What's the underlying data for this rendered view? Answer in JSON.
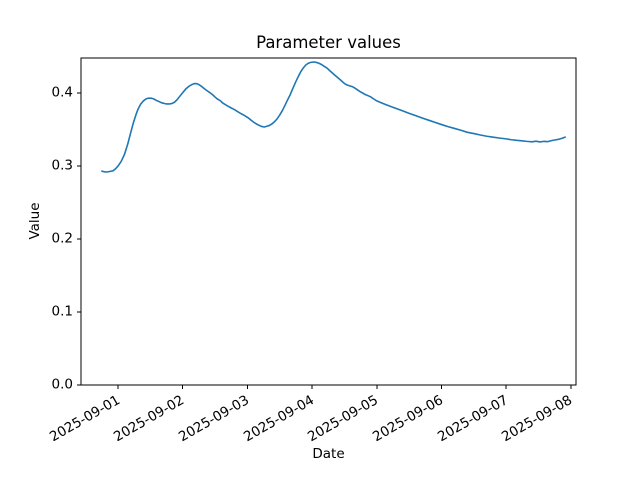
{
  "chart_data": {
    "type": "line",
    "title": "Parameter values",
    "xlabel": "Date",
    "ylabel": "Value",
    "grid": false,
    "legend": "none",
    "x_unit": "days relative to 2025-09-01 00:00",
    "xlim": [
      -0.572,
      7.078
    ],
    "ylim": [
      0.0,
      0.448
    ],
    "x_ticks": [
      {
        "label": "2025-09-01",
        "day": 0
      },
      {
        "label": "2025-09-02",
        "day": 1
      },
      {
        "label": "2025-09-03",
        "day": 2
      },
      {
        "label": "2025-09-04",
        "day": 3
      },
      {
        "label": "2025-09-05",
        "day": 4
      },
      {
        "label": "2025-09-06",
        "day": 5
      },
      {
        "label": "2025-09-07",
        "day": 6
      },
      {
        "label": "2025-09-08",
        "day": 7
      }
    ],
    "y_ticks": [
      {
        "label": "0.0",
        "value": 0.0
      },
      {
        "label": "0.1",
        "value": 0.1
      },
      {
        "label": "0.2",
        "value": 0.2
      },
      {
        "label": "0.3",
        "value": 0.3
      },
      {
        "label": "0.4",
        "value": 0.4
      }
    ],
    "series": [
      {
        "name": "parameter-values",
        "color": "#1f77b4",
        "line_width": 1.6,
        "points": [
          [
            -0.25,
            0.293
          ],
          [
            -0.21,
            0.2921
          ],
          [
            -0.17,
            0.2918
          ],
          [
            -0.12,
            0.2927
          ],
          [
            -0.08,
            0.2934
          ],
          [
            -0.04,
            0.296
          ],
          [
            0.0,
            0.3
          ],
          [
            0.05,
            0.3065
          ],
          [
            0.1,
            0.316
          ],
          [
            0.15,
            0.33
          ],
          [
            0.2,
            0.347
          ],
          [
            0.24,
            0.36
          ],
          [
            0.28,
            0.371
          ],
          [
            0.31,
            0.378
          ],
          [
            0.35,
            0.3848
          ],
          [
            0.39,
            0.389
          ],
          [
            0.43,
            0.3918
          ],
          [
            0.47,
            0.393
          ],
          [
            0.51,
            0.393
          ],
          [
            0.55,
            0.392
          ],
          [
            0.59,
            0.39
          ],
          [
            0.63,
            0.3885
          ],
          [
            0.67,
            0.3868
          ],
          [
            0.71,
            0.3858
          ],
          [
            0.75,
            0.385
          ],
          [
            0.79,
            0.385
          ],
          [
            0.83,
            0.3856
          ],
          [
            0.87,
            0.3872
          ],
          [
            0.91,
            0.3905
          ],
          [
            0.95,
            0.395
          ],
          [
            1.0,
            0.4005
          ],
          [
            1.05,
            0.4058
          ],
          [
            1.1,
            0.4095
          ],
          [
            1.14,
            0.4115
          ],
          [
            1.18,
            0.413
          ],
          [
            1.22,
            0.4128
          ],
          [
            1.26,
            0.411
          ],
          [
            1.3,
            0.4085
          ],
          [
            1.34,
            0.4055
          ],
          [
            1.38,
            0.403
          ],
          [
            1.42,
            0.4005
          ],
          [
            1.46,
            0.3978
          ],
          [
            1.5,
            0.3945
          ],
          [
            1.54,
            0.3915
          ],
          [
            1.58,
            0.3895
          ],
          [
            1.62,
            0.3862
          ],
          [
            1.66,
            0.384
          ],
          [
            1.7,
            0.382
          ],
          [
            1.74,
            0.38
          ],
          [
            1.78,
            0.3782
          ],
          [
            1.82,
            0.3762
          ],
          [
            1.86,
            0.374
          ],
          [
            1.9,
            0.3718
          ],
          [
            1.94,
            0.37
          ],
          [
            1.98,
            0.3678
          ],
          [
            2.02,
            0.3655
          ],
          [
            2.06,
            0.3625
          ],
          [
            2.1,
            0.3598
          ],
          [
            2.14,
            0.3576
          ],
          [
            2.18,
            0.3558
          ],
          [
            2.22,
            0.3542
          ],
          [
            2.26,
            0.3535
          ],
          [
            2.3,
            0.3545
          ],
          [
            2.34,
            0.3556
          ],
          [
            2.38,
            0.3578
          ],
          [
            2.42,
            0.3608
          ],
          [
            2.46,
            0.3648
          ],
          [
            2.5,
            0.37
          ],
          [
            2.54,
            0.376
          ],
          [
            2.58,
            0.383
          ],
          [
            2.62,
            0.3905
          ],
          [
            2.66,
            0.3975
          ],
          [
            2.7,
            0.406
          ],
          [
            2.74,
            0.414
          ],
          [
            2.78,
            0.4215
          ],
          [
            2.82,
            0.4285
          ],
          [
            2.86,
            0.434
          ],
          [
            2.9,
            0.4382
          ],
          [
            2.94,
            0.4408
          ],
          [
            2.98,
            0.442
          ],
          [
            3.02,
            0.4425
          ],
          [
            3.06,
            0.4421
          ],
          [
            3.1,
            0.441
          ],
          [
            3.14,
            0.4393
          ],
          [
            3.18,
            0.437
          ],
          [
            3.23,
            0.4342
          ],
          [
            3.28,
            0.43
          ],
          [
            3.35,
            0.4245
          ],
          [
            3.43,
            0.4185
          ],
          [
            3.5,
            0.413
          ],
          [
            3.54,
            0.411
          ],
          [
            3.58,
            0.4098
          ],
          [
            3.62,
            0.4088
          ],
          [
            3.66,
            0.4068
          ],
          [
            3.74,
            0.402
          ],
          [
            3.82,
            0.398
          ],
          [
            3.9,
            0.395
          ],
          [
            3.95,
            0.392
          ],
          [
            4.0,
            0.3892
          ],
          [
            4.1,
            0.3855
          ],
          [
            4.2,
            0.382
          ],
          [
            4.3,
            0.3788
          ],
          [
            4.4,
            0.3755
          ],
          [
            4.5,
            0.3722
          ],
          [
            4.6,
            0.369
          ],
          [
            4.7,
            0.3658
          ],
          [
            4.8,
            0.3628
          ],
          [
            4.9,
            0.3598
          ],
          [
            5.0,
            0.3568
          ],
          [
            5.1,
            0.354
          ],
          [
            5.2,
            0.3515
          ],
          [
            5.3,
            0.349
          ],
          [
            5.4,
            0.3462
          ],
          [
            5.5,
            0.3445
          ],
          [
            5.6,
            0.3425
          ],
          [
            5.7,
            0.3408
          ],
          [
            5.8,
            0.3395
          ],
          [
            5.9,
            0.3382
          ],
          [
            6.0,
            0.3372
          ],
          [
            6.08,
            0.336
          ],
          [
            6.16,
            0.3352
          ],
          [
            6.24,
            0.3346
          ],
          [
            6.32,
            0.3338
          ],
          [
            6.4,
            0.3332
          ],
          [
            6.46,
            0.334
          ],
          [
            6.52,
            0.333
          ],
          [
            6.58,
            0.3338
          ],
          [
            6.64,
            0.3334
          ],
          [
            6.7,
            0.3348
          ],
          [
            6.76,
            0.3358
          ],
          [
            6.82,
            0.3368
          ],
          [
            6.87,
            0.3382
          ],
          [
            6.91,
            0.3396
          ]
        ]
      }
    ]
  }
}
